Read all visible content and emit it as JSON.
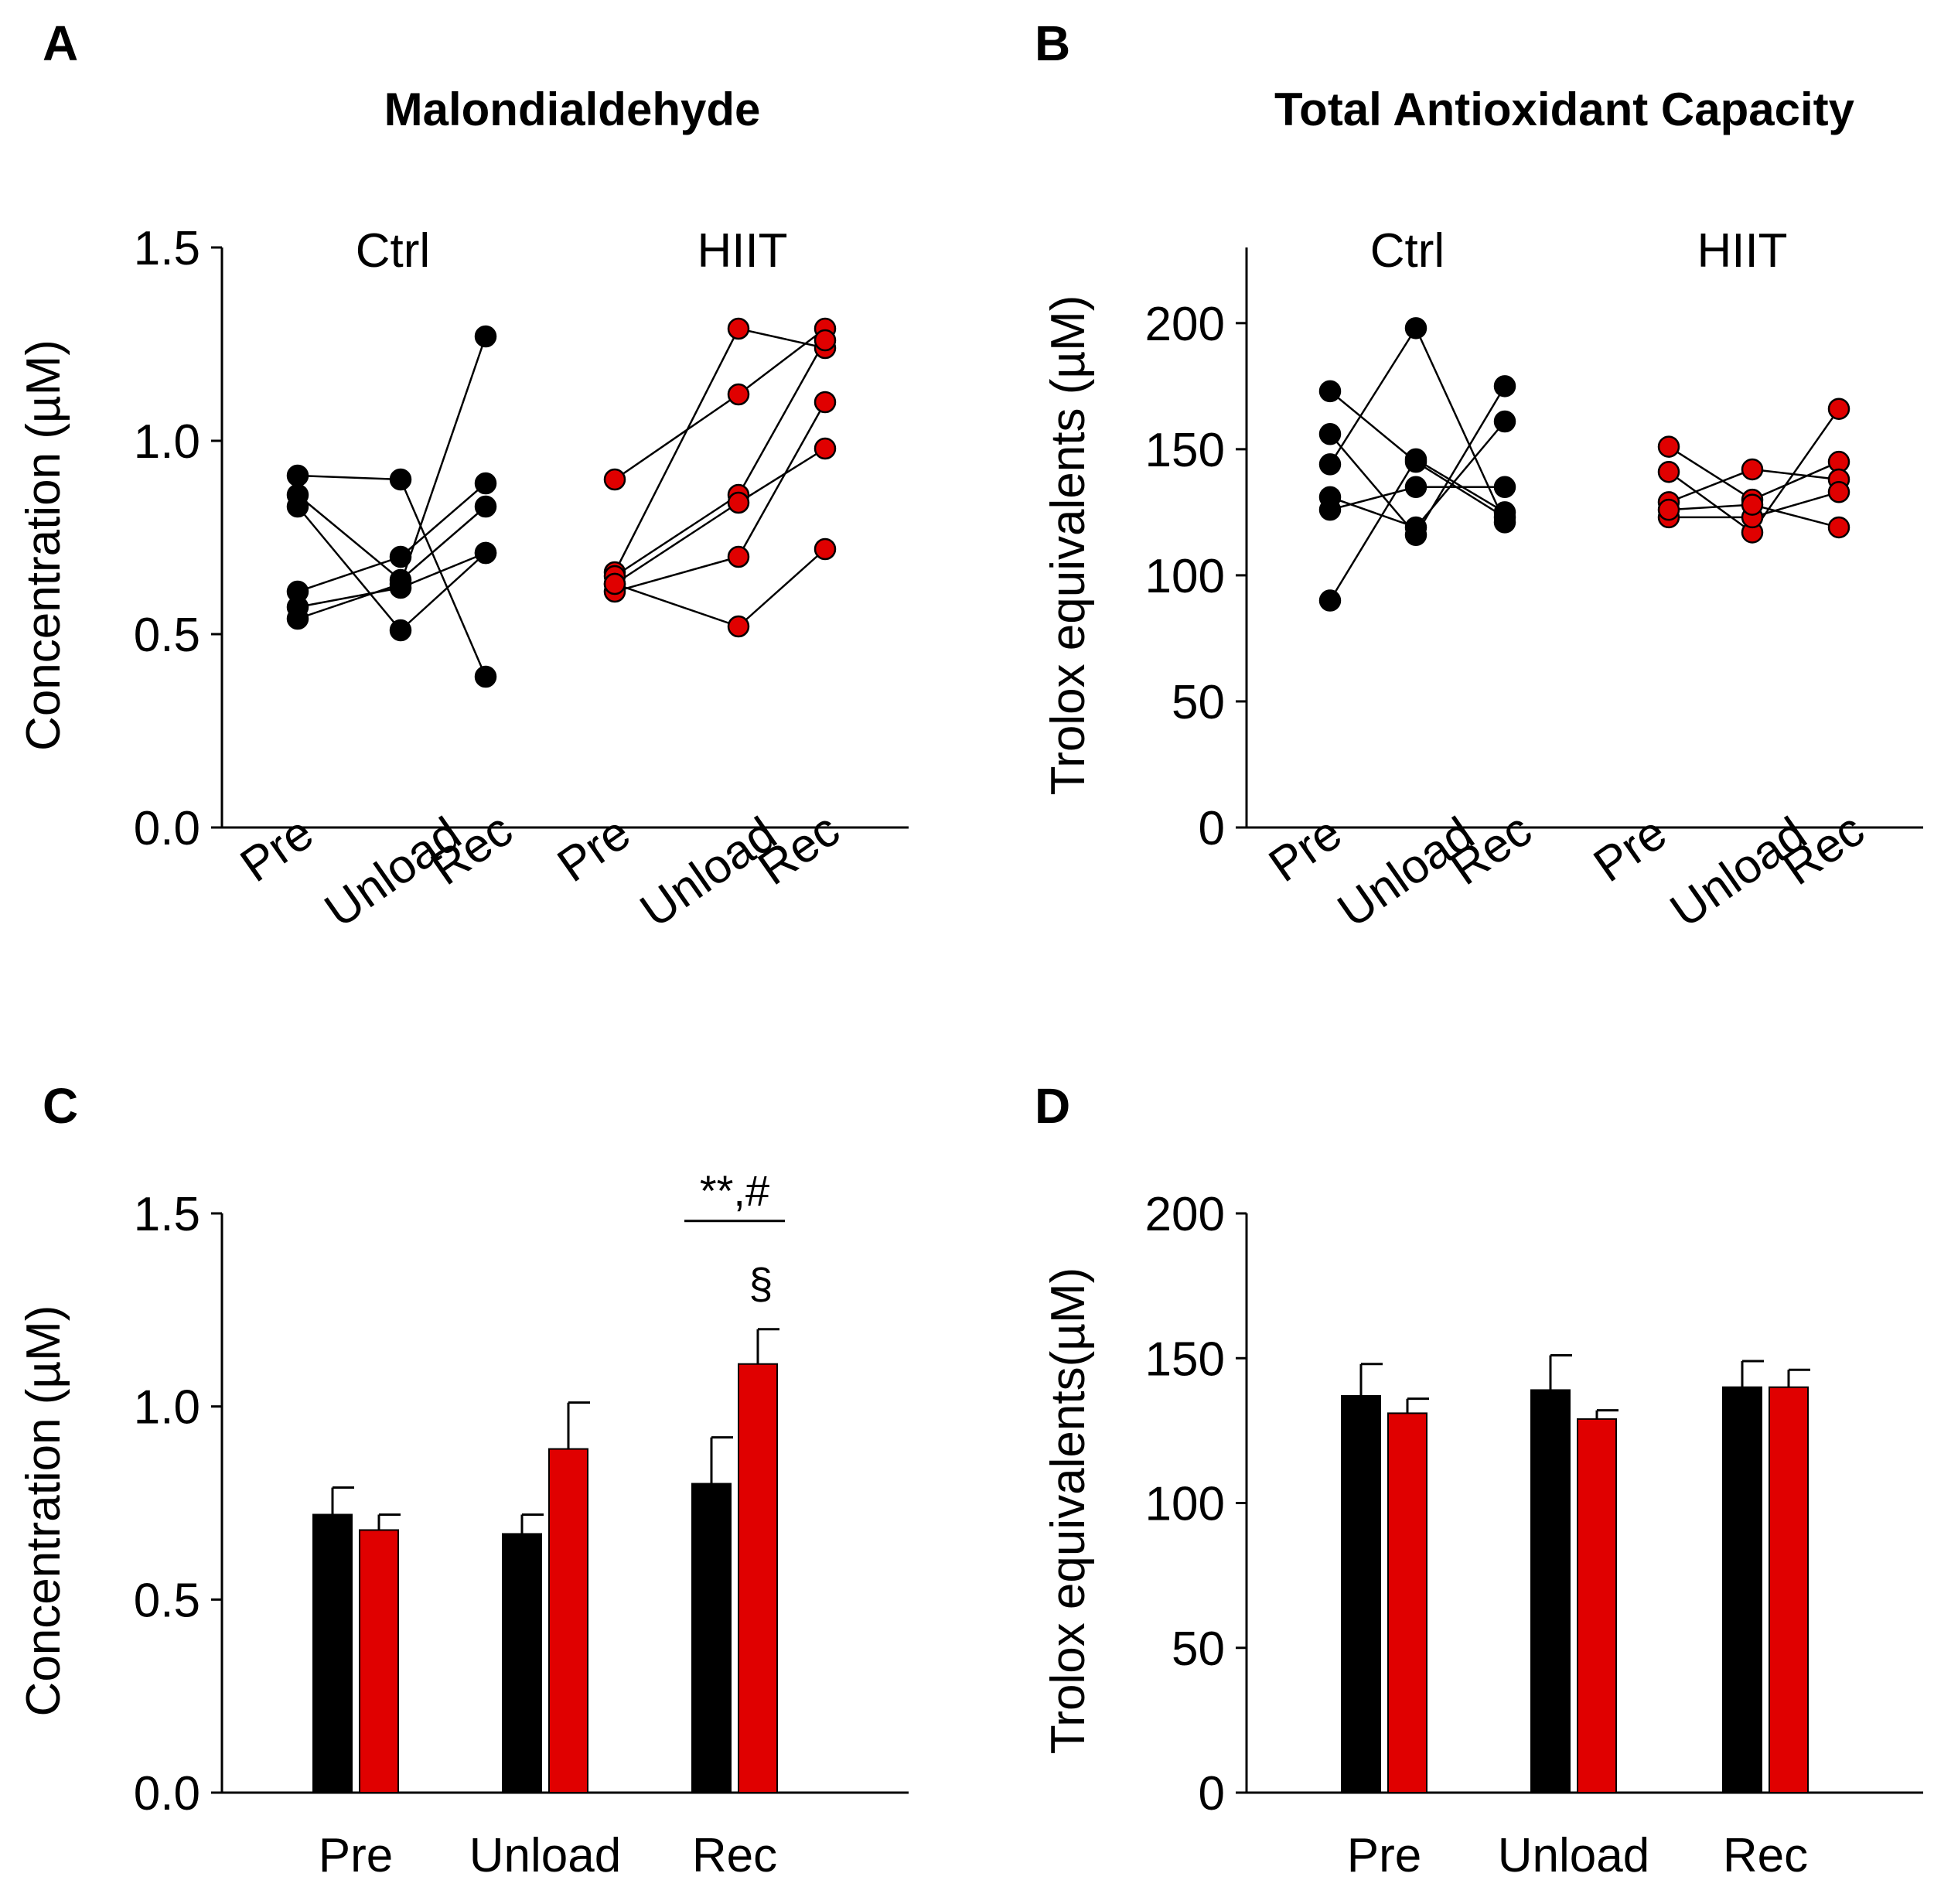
{
  "colors": {
    "ctrl": "#000000",
    "hiit": "#e00000",
    "axis": "#000000",
    "background": "#ffffff"
  },
  "panels": {
    "A": {
      "letter": "A",
      "title": "Malondialdehyde"
    },
    "B": {
      "letter": "B",
      "title": "Total Antioxidant Capacity"
    },
    "C": {
      "letter": "C"
    },
    "D": {
      "letter": "D"
    }
  },
  "chart_data": [
    {
      "id": "A",
      "type": "scatter",
      "title": "Malondialdehyde",
      "ylabel": "Concentration (µM)",
      "ylim": [
        0,
        1.5
      ],
      "yticks": [
        "0.0",
        "0.5",
        "1.0",
        "1.5"
      ],
      "yticks_values": [
        0,
        0.5,
        1.0,
        1.5
      ],
      "timepoints": [
        "Pre",
        "Unload",
        "Rec"
      ],
      "groups": [
        {
          "name": "Ctrl",
          "color": "#000000",
          "subjects": [
            [
              0.91,
              0.9,
              0.39
            ],
            [
              0.86,
              0.64,
              0.83
            ],
            [
              0.83,
              0.51,
              0.71
            ],
            [
              0.61,
              0.7,
              0.89
            ],
            [
              0.57,
              0.62,
              0.71
            ],
            [
              0.54,
              0.63,
              1.27
            ]
          ]
        },
        {
          "name": "HIIT",
          "color": "#e00000",
          "subjects": [
            [
              0.9,
              1.12,
              1.29
            ],
            [
              0.66,
              1.29,
              1.24
            ],
            [
              0.65,
              0.86,
              1.26
            ],
            [
              0.63,
              0.84,
              0.98
            ],
            [
              0.61,
              0.7,
              1.1
            ],
            [
              0.63,
              0.52,
              0.72
            ]
          ]
        }
      ]
    },
    {
      "id": "B",
      "type": "scatter",
      "title": "Total Antioxidant Capacity",
      "ylabel": "Trolox equivalents (µM)",
      "ylim": [
        0,
        230
      ],
      "yticks": [
        "0",
        "50",
        "100",
        "150",
        "200"
      ],
      "yticks_values": [
        0,
        50,
        100,
        150,
        200
      ],
      "timepoints": [
        "Pre",
        "Unload",
        "Rec"
      ],
      "groups": [
        {
          "name": "Ctrl",
          "color": "#000000",
          "subjects": [
            [
              173,
              145,
              123
            ],
            [
              156,
              116,
              175
            ],
            [
              144,
              198,
              121
            ],
            [
              131,
              119,
              161
            ],
            [
              126,
              135,
              135
            ],
            [
              90,
              146,
              125
            ]
          ]
        },
        {
          "name": "HIIT",
          "color": "#e00000",
          "subjects": [
            [
              151,
              130,
              145
            ],
            [
              141,
              117,
              166
            ],
            [
              129,
              142,
              138
            ],
            [
              123,
              123,
              133
            ],
            [
              126,
              128,
              119
            ]
          ]
        }
      ]
    },
    {
      "id": "C",
      "type": "bar",
      "ylabel": "Concentration (µM)",
      "ylim": [
        0,
        1.5
      ],
      "yticks": [
        "0.0",
        "0.5",
        "1.0",
        "1.5"
      ],
      "yticks_values": [
        0,
        0.5,
        1.0,
        1.5
      ],
      "categories": [
        "Pre",
        "Unload",
        "Rec"
      ],
      "series": [
        {
          "name": "Ctrl",
          "color": "#000000",
          "values": [
            0.72,
            0.67,
            0.8
          ],
          "errors": [
            0.07,
            0.05,
            0.12
          ]
        },
        {
          "name": "HIIT",
          "color": "#e00000",
          "values": [
            0.68,
            0.89,
            1.11
          ],
          "errors": [
            0.04,
            0.12,
            0.09
          ]
        }
      ],
      "annotations": {
        "bracket_label": "**,#",
        "hiit_rec_label": "§"
      }
    },
    {
      "id": "D",
      "type": "bar",
      "ylabel": "Trolox equivalents(µM)",
      "ylim": [
        0,
        200
      ],
      "yticks": [
        "0",
        "50",
        "100",
        "150",
        "200"
      ],
      "yticks_values": [
        0,
        50,
        100,
        150,
        200
      ],
      "categories": [
        "Pre",
        "Unload",
        "Rec"
      ],
      "series": [
        {
          "name": "Ctrl",
          "color": "#000000",
          "values": [
            137,
            139,
            140
          ],
          "errors": [
            11,
            12,
            9
          ]
        },
        {
          "name": "HIIT",
          "color": "#e00000",
          "values": [
            131,
            129,
            140
          ],
          "errors": [
            5,
            3,
            6
          ]
        }
      ]
    }
  ]
}
